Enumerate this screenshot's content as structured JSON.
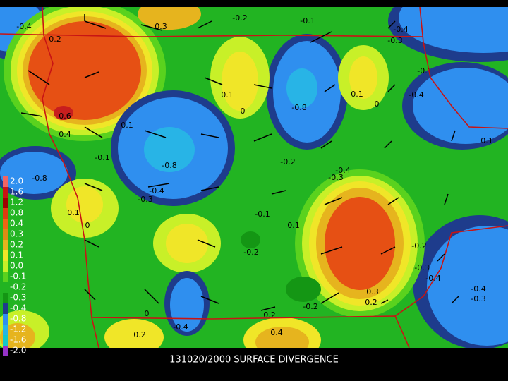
{
  "title": "131020/2000 SURFACE DIVERGENCE",
  "colorbar": [
    {
      "label": "2.0",
      "color": "#f06464"
    },
    {
      "label": "1.6",
      "color": "#c81414"
    },
    {
      "label": "1.2",
      "color": "#a00000"
    },
    {
      "label": "0.8",
      "color": "#e03c10"
    },
    {
      "label": "0.4",
      "color": "#f06414"
    },
    {
      "label": "0.3",
      "color": "#dc8c14"
    },
    {
      "label": "0.2",
      "color": "#e6b41e"
    },
    {
      "label": "0.1",
      "color": "#f0e628"
    },
    {
      "label": "0.0",
      "color": "#c8f028"
    },
    {
      "label": "-0.1",
      "color": "#5ad21e"
    },
    {
      "label": "-0.2",
      "color": "#22b422"
    },
    {
      "label": "-0.3",
      "color": "#149614"
    },
    {
      "label": "-0.4",
      "color": "#1e3c8c"
    },
    {
      "label": "-0.8",
      "color": "#2f8fef"
    },
    {
      "label": "-1.2",
      "color": "#28b4e6"
    },
    {
      "label": "-1.6",
      "color": "#14c8c8"
    },
    {
      "label": "-2.0",
      "color": "#9632c8"
    }
  ],
  "contour_labels": [
    "-0.4",
    "0.2",
    "0.3",
    "-0.2",
    "-0.1",
    "-0.4",
    "-0.3",
    "0.6",
    "0.4",
    "0.1",
    "-0.8",
    "-0.1",
    "0.1",
    "0",
    "-0.8",
    "0.1",
    "0",
    "-0.4",
    "-0.1",
    "0.1",
    "-0.8",
    "0.1",
    "0",
    "-0.4",
    "-0.3",
    "-0.2",
    "-0.3",
    "-0.4",
    "-0.1",
    "0.1",
    "-0.2",
    "-0.2",
    "-0.3",
    "-0.4",
    "0.3",
    "0.2",
    "-0.2",
    "0.2",
    "0.4",
    "0",
    "-0.4",
    "0.2",
    "-0.4",
    "-0.3"
  ]
}
